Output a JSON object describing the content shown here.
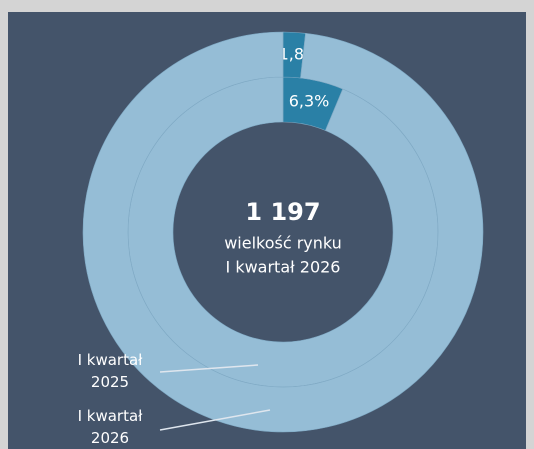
{
  "chart_data": {
    "type": "donut",
    "center_value": "1 197",
    "center_text": [
      "wielkość rynku",
      "I kwartał 2026"
    ],
    "series": [
      {
        "name": "I kwartał 2025",
        "colors": [
          "#2a80a6",
          "#95bdd6"
        ],
        "values": [
          6.3,
          93.7
        ],
        "value_labels": [
          "6,3%",
          null
        ]
      },
      {
        "name": "I kwartał 2026",
        "colors": [
          "#2a80a6",
          "#95bdd6"
        ],
        "values": [
          1.8,
          98.2
        ],
        "value_labels": [
          "1,8%",
          null
        ]
      }
    ]
  }
}
